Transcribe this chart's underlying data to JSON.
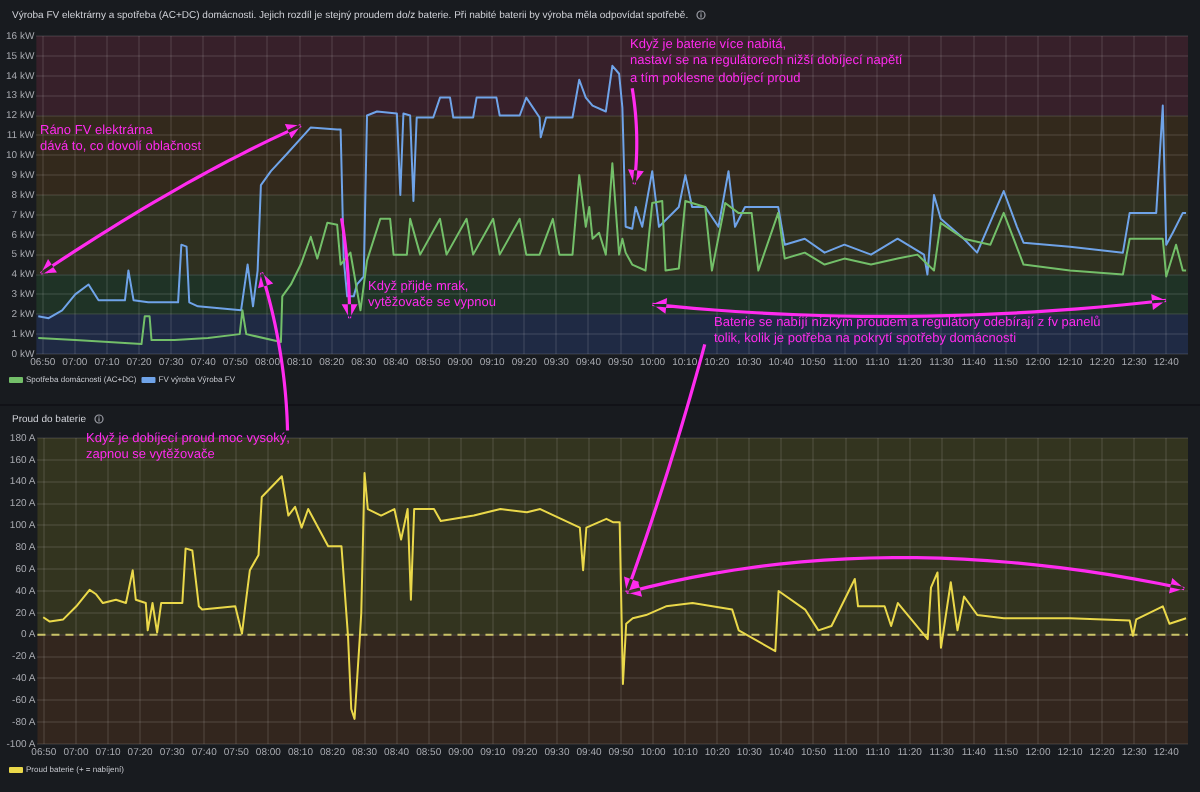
{
  "chart_data": [
    {
      "type": "line",
      "title": "Výroba FV elektrárny a spotřeba (AC+DC) domácnosti. Jejich rozdíl je stejný proudem do/z baterie. Při nabité baterii by výroba měla odpovídat spotřebě.",
      "marker": "none",
      "line_style": "solid",
      "grid": true,
      "legend": "bottom left",
      "xlim": [
        6.8,
        12.78
      ],
      "xticks": [
        {
          "value": 6.8333,
          "label": "06:50"
        },
        {
          "value": 7,
          "label": "07:00"
        },
        {
          "value": 7.1667,
          "label": "07:10"
        },
        {
          "value": 7.3333,
          "label": "07:20"
        },
        {
          "value": 7.5,
          "label": "07:30"
        },
        {
          "value": 7.6667,
          "label": "07:40"
        },
        {
          "value": 7.8333,
          "label": "07:50"
        },
        {
          "value": 8,
          "label": "08:00"
        },
        {
          "value": 8.1667,
          "label": "08:10"
        },
        {
          "value": 8.3333,
          "label": "08:20"
        },
        {
          "value": 8.5,
          "label": "08:30"
        },
        {
          "value": 8.6667,
          "label": "08:40"
        },
        {
          "value": 8.8333,
          "label": "08:50"
        },
        {
          "value": 9,
          "label": "09:00"
        },
        {
          "value": 9.1667,
          "label": "09:10"
        },
        {
          "value": 9.3333,
          "label": "09:20"
        },
        {
          "value": 9.5,
          "label": "09:30"
        },
        {
          "value": 9.6667,
          "label": "09:40"
        },
        {
          "value": 9.8333,
          "label": "09:50"
        },
        {
          "value": 10,
          "label": "10:00"
        },
        {
          "value": 10.1667,
          "label": "10:10"
        },
        {
          "value": 10.3333,
          "label": "10:20"
        },
        {
          "value": 10.5,
          "label": "10:30"
        },
        {
          "value": 10.6667,
          "label": "10:40"
        },
        {
          "value": 10.8333,
          "label": "10:50"
        },
        {
          "value": 11,
          "label": "11:00"
        },
        {
          "value": 11.1667,
          "label": "11:10"
        },
        {
          "value": 11.3333,
          "label": "11:20"
        },
        {
          "value": 11.5,
          "label": "11:30"
        },
        {
          "value": 11.6667,
          "label": "11:40"
        },
        {
          "value": 11.8333,
          "label": "11:50"
        },
        {
          "value": 12,
          "label": "12:00"
        },
        {
          "value": 12.1667,
          "label": "12:10"
        },
        {
          "value": 12.3333,
          "label": "12:20"
        },
        {
          "value": 12.5,
          "label": "12:30"
        },
        {
          "value": 12.6667,
          "label": "12:40"
        }
      ],
      "ylim": [
        0,
        16
      ],
      "yticks": [
        {
          "value": 0,
          "label": "0 kW"
        },
        {
          "value": 1,
          "label": "1 kW"
        },
        {
          "value": 2,
          "label": "2 kW"
        },
        {
          "value": 3,
          "label": "3 kW"
        },
        {
          "value": 4,
          "label": "4 kW"
        },
        {
          "value": 5,
          "label": "5 kW"
        },
        {
          "value": 6,
          "label": "6 kW"
        },
        {
          "value": 7,
          "label": "7 kW"
        },
        {
          "value": 8,
          "label": "8 kW"
        },
        {
          "value": 9,
          "label": "9 kW"
        },
        {
          "value": 10,
          "label": "10 kW"
        },
        {
          "value": 11,
          "label": "11 kW"
        },
        {
          "value": 12,
          "label": "12 kW"
        },
        {
          "value": 13,
          "label": "13 kW"
        },
        {
          "value": 14,
          "label": "14 kW"
        },
        {
          "value": 15,
          "label": "15 kW"
        },
        {
          "value": 16,
          "label": "16 kW"
        }
      ],
      "bands": [
        {
          "axis": "y",
          "from": 0,
          "to": 2,
          "color": "#1f2a44"
        },
        {
          "axis": "y",
          "from": 2,
          "to": 4,
          "color": "#1f3326"
        },
        {
          "axis": "y",
          "from": 4,
          "to": 8,
          "color": "#2f3020"
        },
        {
          "axis": "y",
          "from": 8,
          "to": 12,
          "color": "#33291c"
        },
        {
          "axis": "y",
          "from": 12,
          "to": 16,
          "color": "#37202a"
        }
      ],
      "series": [
        {
          "name": "Spotřeba domácnosti (AC+DC)",
          "color": "#73bf69",
          "x": [
            6.81,
            7.002,
            7.174,
            7.346,
            7.363,
            7.388,
            7.398,
            7.518,
            7.691,
            7.856,
            7.87,
            7.89,
            8.07,
            8.077,
            8.122,
            8.173,
            8.225,
            8.259,
            8.311,
            8.362,
            8.38,
            8.431,
            8.483,
            8.517,
            8.586,
            8.637,
            8.655,
            8.724,
            8.741,
            8.793,
            8.896,
            8.93,
            9.034,
            9.068,
            9.172,
            9.206,
            9.31,
            9.344,
            9.413,
            9.482,
            9.516,
            9.584,
            9.619,
            9.653,
            9.671,
            9.688,
            9.722,
            9.757,
            9.791,
            9.826,
            9.843,
            9.86,
            9.894,
            9.963,
            9.998,
            10.05,
            10.067,
            10.136,
            10.17,
            10.273,
            10.308,
            10.377,
            10.445,
            10.514,
            10.549,
            10.652,
            10.686,
            10.79,
            10.893,
            10.996,
            11.134,
            11.272,
            11.375,
            11.461,
            11.496,
            11.616,
            11.754,
            11.823,
            11.926,
            12.167,
            12.442,
            12.477,
            12.649,
            12.667,
            12.718,
            12.753,
            12.77
          ],
          "values": [
            0.8,
            0.7,
            0.6,
            0.5,
            1.9,
            1.9,
            0.7,
            0.7,
            0.8,
            1.0,
            2.2,
            1.0,
            0.6,
            2.9,
            3.5,
            4.5,
            5.9,
            4.8,
            6.6,
            6.5,
            4.5,
            5.1,
            2.2,
            4.7,
            6.8,
            6.8,
            5.0,
            5.0,
            6.8,
            5.0,
            6.8,
            5.0,
            6.8,
            5.0,
            6.8,
            5.0,
            6.8,
            5.0,
            5.0,
            6.8,
            5.0,
            5.0,
            9.0,
            6.4,
            7.4,
            5.8,
            6.1,
            5.0,
            9.6,
            5.0,
            5.8,
            5.1,
            4.5,
            4.2,
            7.6,
            7.7,
            4.2,
            4.3,
            7.7,
            7.4,
            4.2,
            7.6,
            7.1,
            7.1,
            4.2,
            7.1,
            4.8,
            5.1,
            4.5,
            4.8,
            4.5,
            4.8,
            5.0,
            4.2,
            6.6,
            5.8,
            5.5,
            7.1,
            4.5,
            4.2,
            4.0,
            5.8,
            5.8,
            3.9,
            5.5,
            4.2,
            4.2
          ]
        },
        {
          "name": "FV výroba Výroba FV",
          "color": "#6fa3e8",
          "x": [
            6.81,
            6.864,
            6.934,
            7.002,
            7.071,
            7.123,
            7.174,
            7.26,
            7.278,
            7.305,
            7.381,
            7.536,
            7.553,
            7.58,
            7.594,
            7.639,
            7.863,
            7.897,
            7.925,
            7.949,
            7.966,
            8.018,
            8.104,
            8.225,
            8.362,
            8.38,
            8.396,
            8.414,
            8.448,
            8.465,
            8.5,
            8.517,
            8.569,
            8.672,
            8.69,
            8.706,
            8.741,
            8.758,
            8.775,
            8.861,
            8.896,
            8.948,
            8.965,
            9.068,
            9.086,
            9.189,
            9.206,
            9.31,
            9.344,
            9.413,
            9.419,
            9.447,
            9.584,
            9.619,
            9.653,
            9.688,
            9.757,
            9.791,
            9.826,
            9.843,
            9.86,
            9.894,
            9.912,
            9.946,
            9.998,
            10.033,
            10.136,
            10.17,
            10.205,
            10.273,
            10.342,
            10.394,
            10.428,
            10.48,
            10.652,
            10.686,
            10.79,
            10.893,
            10.996,
            11.134,
            11.272,
            11.409,
            11.427,
            11.461,
            11.496,
            11.616,
            11.685,
            11.823,
            11.892,
            11.926,
            12.167,
            12.442,
            12.477,
            12.615,
            12.649,
            12.667,
            12.701,
            12.753,
            12.77
          ],
          "values": [
            1.9,
            1.8,
            2.2,
            3.0,
            3.5,
            2.7,
            2.7,
            2.7,
            4.2,
            2.7,
            2.6,
            2.6,
            5.5,
            5.4,
            2.6,
            2.4,
            2.2,
            4.5,
            2.4,
            4.2,
            8.5,
            9.2,
            10.1,
            11.4,
            11.3,
            11.3,
            4.8,
            2.9,
            2.9,
            3.5,
            3.9,
            12.0,
            12.2,
            12.1,
            8.0,
            12.1,
            12.0,
            7.7,
            11.9,
            11.9,
            12.9,
            12.9,
            11.9,
            11.9,
            12.9,
            12.9,
            12.0,
            12.0,
            12.9,
            11.9,
            10.9,
            11.9,
            11.9,
            13.8,
            12.9,
            12.5,
            12.2,
            14.5,
            14.1,
            12.4,
            6.4,
            6.3,
            7.4,
            6.4,
            9.2,
            6.4,
            7.4,
            9.0,
            7.4,
            7.4,
            6.4,
            9.2,
            6.4,
            7.4,
            7.4,
            5.5,
            5.8,
            5.1,
            5.5,
            5.0,
            5.8,
            5.0,
            4.0,
            8.0,
            6.8,
            5.8,
            5.1,
            8.2,
            6.4,
            5.6,
            5.4,
            5.1,
            7.1,
            7.1,
            12.5,
            5.5,
            6.1,
            7.1,
            7.1
          ]
        }
      ],
      "annotations": [
        "Ráno FV elektrárna\ndává to, co dovolí oblačnost",
        {
          "text": "Když přijde mrak,\nvytěžovače se vypnou",
          "x": 8.43,
          "y": 1.8
        },
        "Když je baterie více nabitá,\nnastaví se na regulátorech nižší dobíjecí napětí\na tím poklesne dobíjecí proud",
        "Baterie se nabíjí nízkým proudem a regulátory odebírají z fv panelů\ntolik, kolik je potřeba na pokrytí spotřeby domácnosti",
        "Když je dobíjecí proud moc vysoký,\nzapnou se vytěžovače"
      ]
    },
    {
      "type": "line",
      "title": "Proud do baterie",
      "marker": "none",
      "line_style": "solid",
      "grid": true,
      "legend": "bottom left",
      "xlim": [
        6.8,
        12.78
      ],
      "xticks": [
        {
          "value": 6.8333,
          "label": "06:50"
        },
        {
          "value": 7,
          "label": "07:00"
        },
        {
          "value": 7.1667,
          "label": "07:10"
        },
        {
          "value": 7.3333,
          "label": "07:20"
        },
        {
          "value": 7.5,
          "label": "07:30"
        },
        {
          "value": 7.6667,
          "label": "07:40"
        },
        {
          "value": 7.8333,
          "label": "07:50"
        },
        {
          "value": 8,
          "label": "08:00"
        },
        {
          "value": 8.1667,
          "label": "08:10"
        },
        {
          "value": 8.3333,
          "label": "08:20"
        },
        {
          "value": 8.5,
          "label": "08:30"
        },
        {
          "value": 8.6667,
          "label": "08:40"
        },
        {
          "value": 8.8333,
          "label": "08:50"
        },
        {
          "value": 9,
          "label": "09:00"
        },
        {
          "value": 9.1667,
          "label": "09:10"
        },
        {
          "value": 9.3333,
          "label": "09:20"
        },
        {
          "value": 9.5,
          "label": "09:30"
        },
        {
          "value": 9.6667,
          "label": "09:40"
        },
        {
          "value": 9.8333,
          "label": "09:50"
        },
        {
          "value": 10,
          "label": "10:00"
        },
        {
          "value": 10.1667,
          "label": "10:10"
        },
        {
          "value": 10.3333,
          "label": "10:20"
        },
        {
          "value": 10.5,
          "label": "10:30"
        },
        {
          "value": 10.6667,
          "label": "10:40"
        },
        {
          "value": 10.8333,
          "label": "10:50"
        },
        {
          "value": 11,
          "label": "11:00"
        },
        {
          "value": 11.1667,
          "label": "11:10"
        },
        {
          "value": 11.3333,
          "label": "11:20"
        },
        {
          "value": 11.5,
          "label": "11:30"
        },
        {
          "value": 11.6667,
          "label": "11:40"
        },
        {
          "value": 11.8333,
          "label": "11:50"
        },
        {
          "value": 12,
          "label": "12:00"
        },
        {
          "value": 12.1667,
          "label": "12:10"
        },
        {
          "value": 12.3333,
          "label": "12:20"
        },
        {
          "value": 12.5,
          "label": "12:30"
        },
        {
          "value": 12.6667,
          "label": "12:40"
        }
      ],
      "ylim": [
        -100,
        180
      ],
      "yticks": [
        {
          "value": -100,
          "label": "-100 A"
        },
        {
          "value": -80,
          "label": "-80 A"
        },
        {
          "value": -60,
          "label": "-60 A"
        },
        {
          "value": -40,
          "label": "-40 A"
        },
        {
          "value": -20,
          "label": "-20 A"
        },
        {
          "value": 0,
          "label": "0 A"
        },
        {
          "value": 20,
          "label": "20 A"
        },
        {
          "value": 40,
          "label": "40 A"
        },
        {
          "value": 60,
          "label": "60 A"
        },
        {
          "value": 80,
          "label": "80 A"
        },
        {
          "value": 100,
          "label": "100 A"
        },
        {
          "value": 120,
          "label": "120 A"
        },
        {
          "value": 140,
          "label": "140 A"
        },
        {
          "value": 160,
          "label": "160 A"
        },
        {
          "value": 180,
          "label": "180 A"
        }
      ],
      "bands": [
        {
          "axis": "y",
          "from": 0,
          "to": 180,
          "color": "#33341f"
        },
        {
          "axis": "y",
          "from": -100,
          "to": 0,
          "color": "#33261e"
        }
      ],
      "ref_lines": [
        {
          "axis": "y",
          "value": 0,
          "color": "#c9c267",
          "line_style": "dashed"
        }
      ],
      "series": [
        {
          "name": "Proud baterie (+ = nabíjení)",
          "color": "#ead84a",
          "x": [
            6.83,
            6.864,
            6.934,
            7.002,
            7.071,
            7.105,
            7.14,
            7.208,
            7.26,
            7.295,
            7.311,
            7.363,
            7.373,
            7.398,
            7.422,
            7.443,
            7.553,
            7.57,
            7.605,
            7.639,
            7.656,
            7.828,
            7.863,
            7.88,
            7.904,
            7.949,
            7.966,
            8.07,
            8.104,
            8.139,
            8.173,
            8.207,
            8.311,
            8.38,
            8.414,
            8.431,
            8.448,
            8.476,
            8.483,
            8.5,
            8.517,
            8.586,
            8.655,
            8.69,
            8.724,
            8.741,
            8.758,
            8.861,
            8.896,
            9.068,
            9.206,
            9.344,
            9.413,
            9.619,
            9.636,
            9.653,
            9.757,
            9.791,
            9.826,
            9.843,
            9.86,
            9.894,
            9.963,
            10.067,
            10.205,
            10.411,
            10.445,
            10.635,
            10.652,
            10.79,
            10.859,
            10.927,
            11.048,
            11.065,
            11.203,
            11.237,
            11.272,
            11.427,
            11.444,
            11.478,
            11.496,
            11.547,
            11.582,
            11.616,
            11.685,
            11.823,
            12.167,
            12.477,
            12.494,
            12.511,
            12.649,
            12.684,
            12.77
          ],
          "values": [
            16,
            12,
            14,
            26,
            41,
            37,
            29,
            32,
            29,
            59,
            32,
            29,
            4,
            29,
            2,
            29,
            29,
            79,
            77,
            26,
            23,
            26,
            1,
            26,
            59,
            73,
            126,
            145,
            109,
            117,
            98,
            115,
            81,
            81,
            -1,
            -68,
            -77,
            -1,
            20,
            148,
            115,
            109,
            115,
            87,
            115,
            32,
            115,
            115,
            104,
            109,
            115,
            112,
            115,
            98,
            59,
            98,
            106,
            103,
            103,
            -45,
            10,
            15,
            18,
            26,
            29,
            23,
            4,
            -15,
            40,
            23,
            4,
            8,
            51,
            26,
            26,
            8,
            29,
            -4,
            43,
            57,
            -12,
            48,
            4,
            35,
            18,
            15,
            15,
            13,
            -1,
            14,
            26,
            10,
            15
          ]
        }
      ],
      "legend_title": null
    }
  ]
}
